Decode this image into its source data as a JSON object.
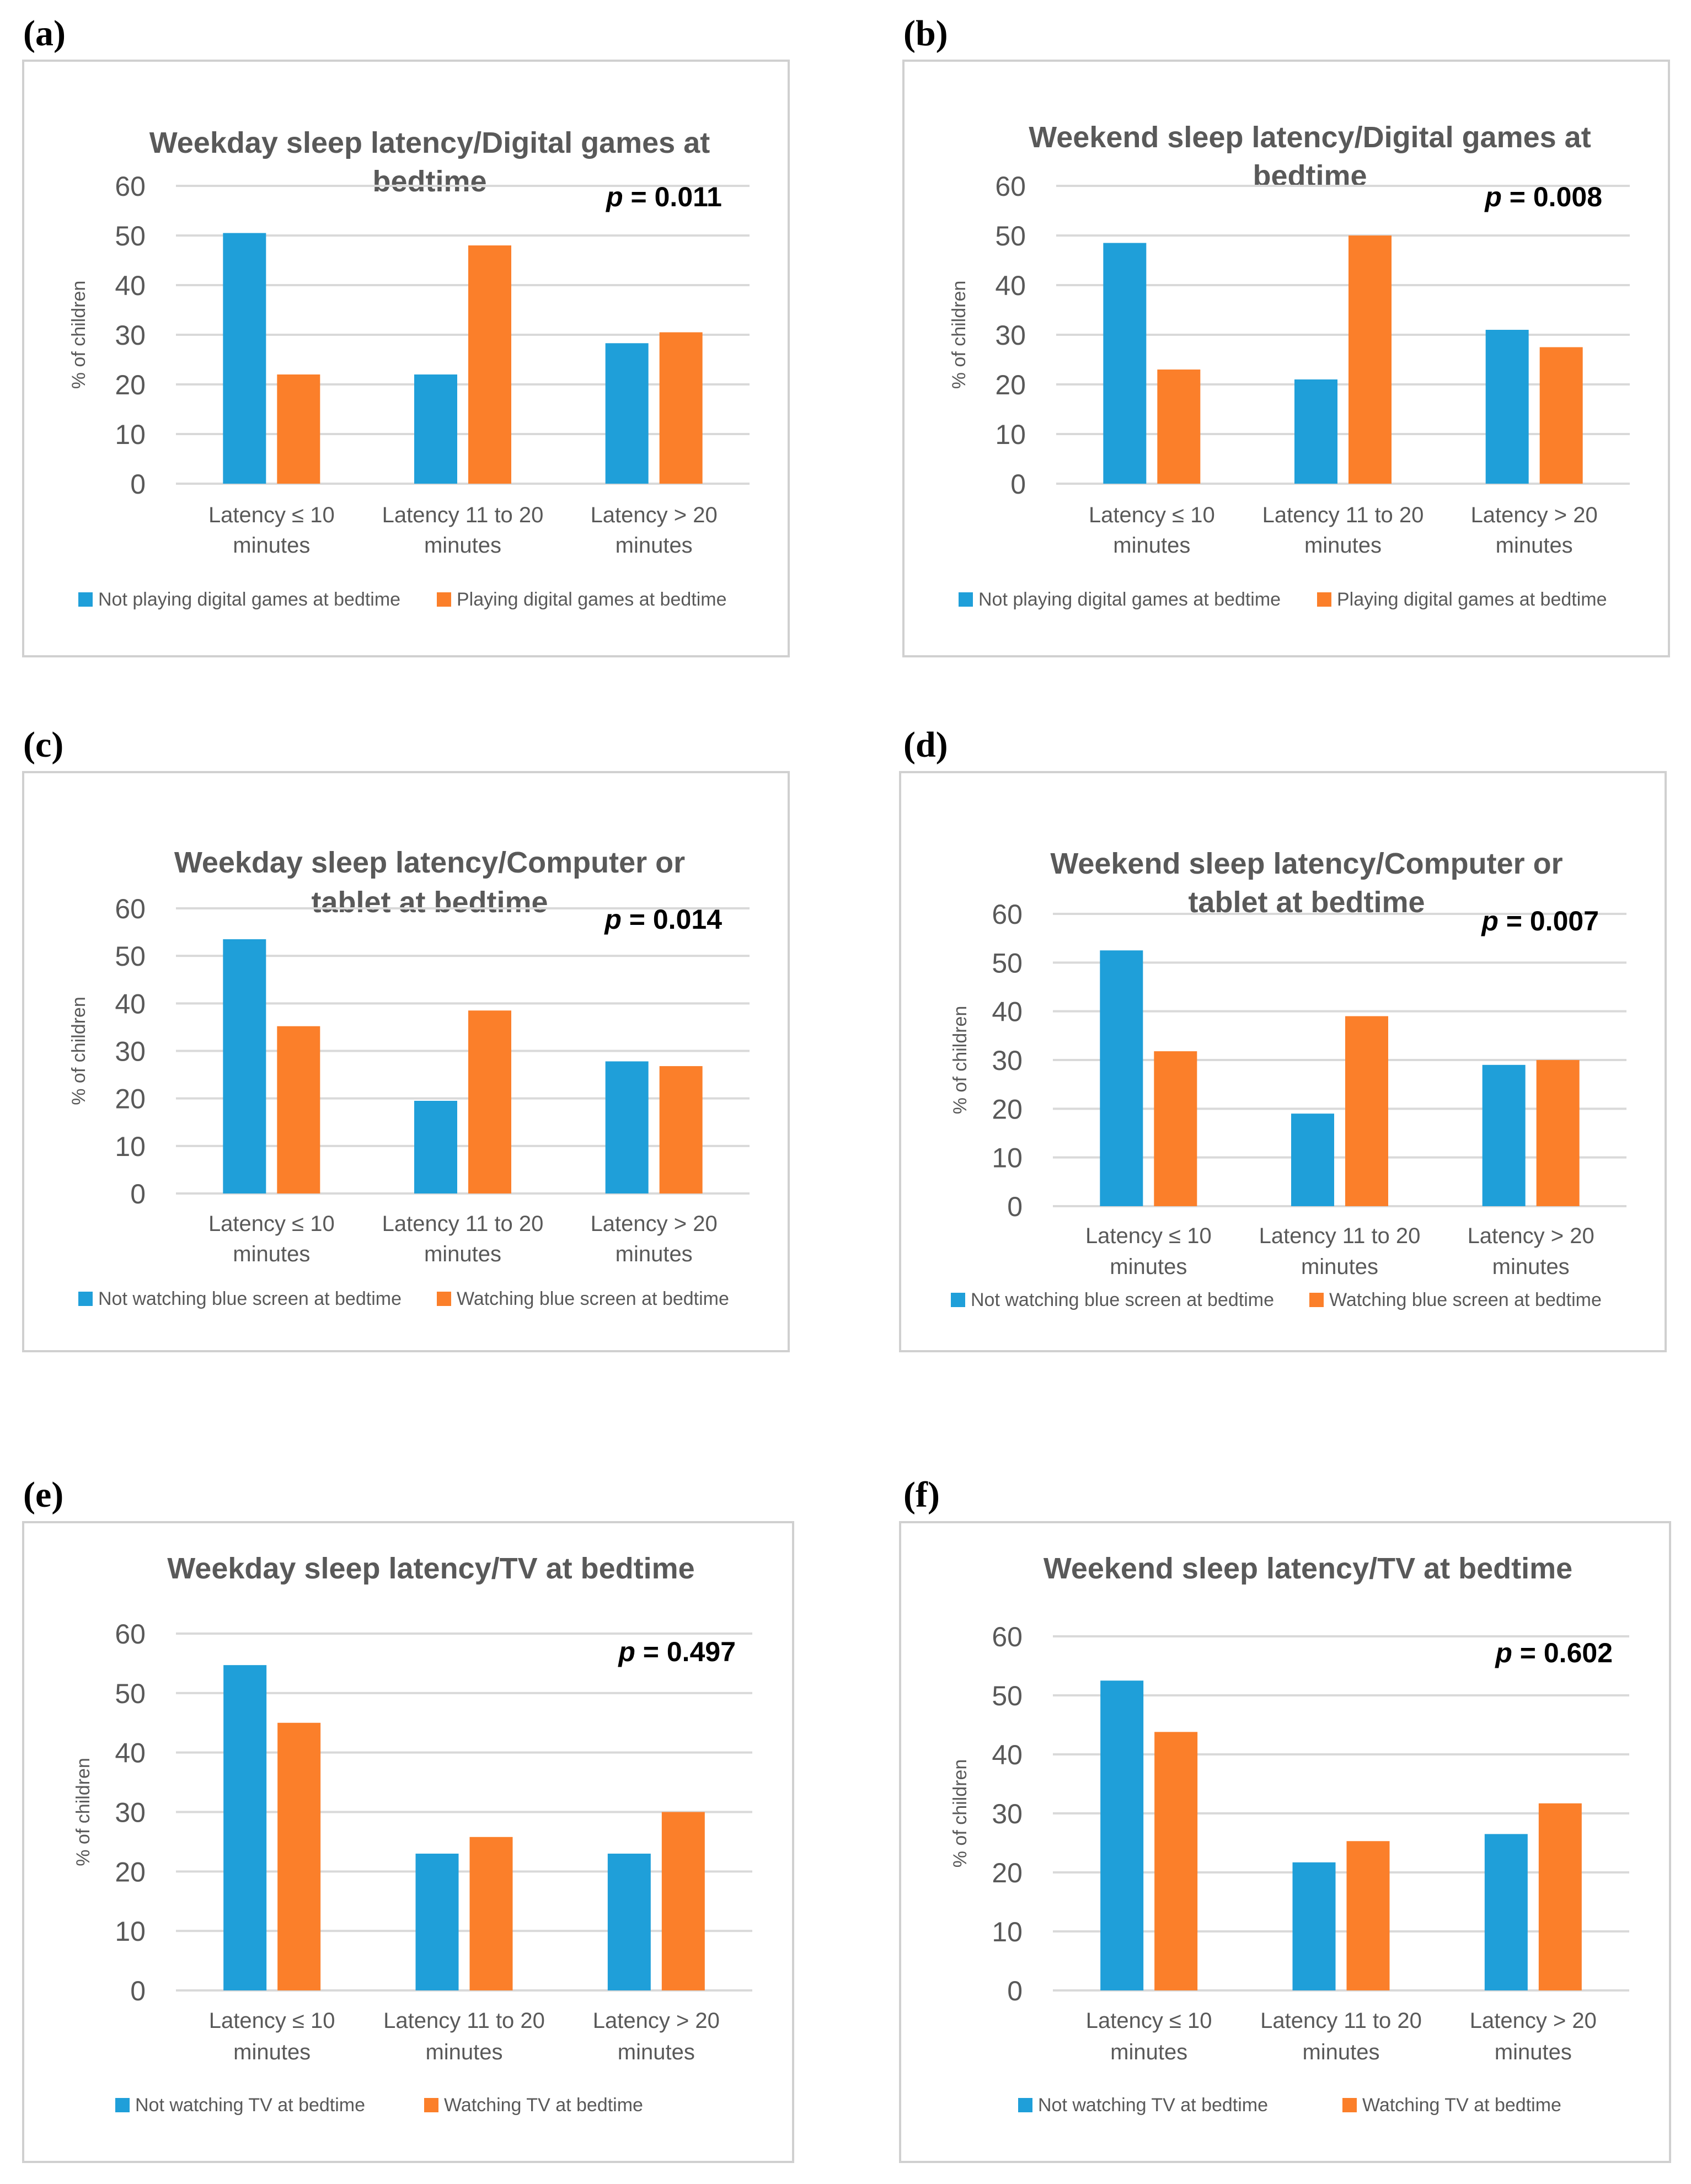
{
  "colors": {
    "series1": "#1f9fd9",
    "series2": "#fb7f2a",
    "grid": "#d9d9d9",
    "title": "#595959",
    "text": "#595959"
  },
  "chart_data": [
    {
      "id": "a",
      "panel_label": "(a)",
      "type": "bar",
      "title": "Weekday sleep latency/Digital games at bedtime",
      "title_lines": [
        "Weekday sleep latency/Digital games at",
        "bedtime"
      ],
      "p_label": "p",
      "p_value": " = 0.011",
      "ylabel": "% of children",
      "ylim": [
        0,
        60
      ],
      "yticks": [
        0,
        10,
        20,
        30,
        40,
        50,
        60
      ],
      "categories": [
        [
          "Latency ≤ 10",
          "minutes"
        ],
        [
          "Latency 11 to 20",
          "minutes"
        ],
        [
          "Latency > 20",
          "minutes"
        ]
      ],
      "series": [
        {
          "name": "Not playing digital games at bedtime",
          "values": [
            50.5,
            22,
            28.3
          ]
        },
        {
          "name": "Playing digital games at bedtime",
          "values": [
            22,
            48,
            30.5
          ]
        }
      ],
      "legend_position": "bottom"
    },
    {
      "id": "b",
      "panel_label": "(b)",
      "type": "bar",
      "title": "Weekend sleep latency/Digital games at bedtime",
      "title_lines": [
        "Weekend sleep latency/Digital games at",
        "bedtime"
      ],
      "p_label": "p",
      "p_value": " = 0.008",
      "ylabel": "% of children",
      "ylim": [
        0,
        60
      ],
      "yticks": [
        0,
        10,
        20,
        30,
        40,
        50,
        60
      ],
      "categories": [
        [
          "Latency ≤ 10",
          "minutes"
        ],
        [
          "Latency 11 to 20",
          "minutes"
        ],
        [
          "Latency > 20",
          "minutes"
        ]
      ],
      "series": [
        {
          "name": "Not playing digital games at bedtime",
          "values": [
            48.5,
            21,
            31
          ]
        },
        {
          "name": "Playing digital games at bedtime",
          "values": [
            23,
            50,
            27.5
          ]
        }
      ],
      "legend_position": "bottom"
    },
    {
      "id": "c",
      "panel_label": "(c)",
      "type": "bar",
      "title": "Weekday sleep latency/Computer or tablet at bedtime",
      "title_lines": [
        "Weekday sleep latency/Computer or",
        "tablet at bedtime"
      ],
      "p_label": "p",
      "p_value": " = 0.014",
      "ylabel": "% of children",
      "ylim": [
        0,
        60
      ],
      "yticks": [
        0,
        10,
        20,
        30,
        40,
        50,
        60
      ],
      "categories": [
        [
          "Latency ≤ 10",
          "minutes"
        ],
        [
          "Latency 11 to 20",
          "minutes"
        ],
        [
          "Latency > 20",
          "minutes"
        ]
      ],
      "series": [
        {
          "name": "Not watching blue screen at bedtime",
          "values": [
            53.5,
            19.5,
            27.8
          ]
        },
        {
          "name": "Watching blue screen at bedtime",
          "values": [
            35.2,
            38.5,
            26.8
          ]
        }
      ],
      "legend_position": "bottom"
    },
    {
      "id": "d",
      "panel_label": "(d)",
      "type": "bar",
      "title": "Weekend sleep latency/Computer or tablet at bedtime",
      "title_lines": [
        "Weekend sleep latency/Computer or",
        "tablet at bedtime"
      ],
      "p_label": "p",
      "p_value": " = 0.007",
      "ylabel": "% of children",
      "ylim": [
        0,
        60
      ],
      "yticks": [
        0,
        10,
        20,
        30,
        40,
        50,
        60
      ],
      "categories": [
        [
          "Latency ≤ 10",
          "minutes"
        ],
        [
          "Latency 11 to 20",
          "minutes"
        ],
        [
          "Latency > 20",
          "minutes"
        ]
      ],
      "series": [
        {
          "name": "Not watching blue screen at bedtime",
          "values": [
            52.5,
            19,
            29
          ]
        },
        {
          "name": "Watching blue screen at bedtime",
          "values": [
            31.8,
            39,
            30
          ]
        }
      ],
      "legend_position": "bottom"
    },
    {
      "id": "e",
      "panel_label": "(e)",
      "type": "bar",
      "title": "Weekday sleep latency/TV at bedtime",
      "title_lines": [
        "Weekday sleep latency/TV at bedtime"
      ],
      "p_label": "p",
      "p_value": " = 0.497",
      "ylabel": "% of children",
      "ylim": [
        0,
        60
      ],
      "yticks": [
        0,
        10,
        20,
        30,
        40,
        50,
        60
      ],
      "categories": [
        [
          "Latency ≤ 10",
          "minutes"
        ],
        [
          "Latency 11 to 20",
          "minutes"
        ],
        [
          "Latency > 20",
          "minutes"
        ]
      ],
      "series": [
        {
          "name": "Not watching TV at bedtime",
          "values": [
            54.7,
            23,
            23
          ]
        },
        {
          "name": "Watching TV at bedtime",
          "values": [
            45,
            25.8,
            30
          ]
        }
      ],
      "legend_position": "bottom"
    },
    {
      "id": "f",
      "panel_label": "(f)",
      "type": "bar",
      "title": "Weekend sleep latency/TV at bedtime",
      "title_lines": [
        "Weekend sleep latency/TV at bedtime"
      ],
      "p_label": "p",
      "p_value": " = 0.602",
      "ylabel": "% of children",
      "ylim": [
        0,
        60
      ],
      "yticks": [
        0,
        10,
        20,
        30,
        40,
        50,
        60
      ],
      "categories": [
        [
          "Latency ≤ 10",
          "minutes"
        ],
        [
          "Latency 11 to 20",
          "minutes"
        ],
        [
          "Latency > 20",
          "minutes"
        ]
      ],
      "series": [
        {
          "name": "Not watching TV at bedtime",
          "values": [
            52.5,
            21.7,
            26.5
          ]
        },
        {
          "name": "Watching TV at bedtime",
          "values": [
            43.8,
            25.3,
            31.7
          ]
        }
      ],
      "legend_position": "bottom"
    }
  ]
}
